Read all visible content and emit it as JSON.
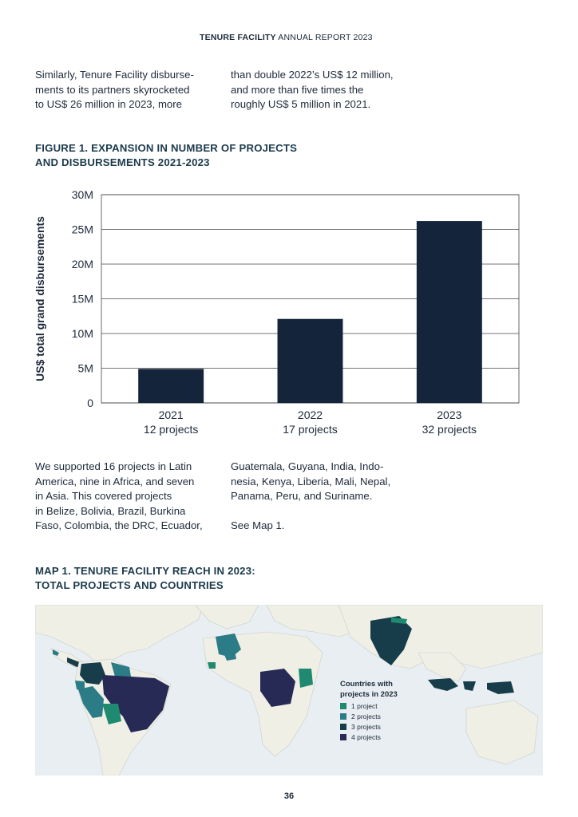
{
  "header": {
    "brand": "TENURE FACILITY",
    "rest": " ANNUAL REPORT 2023"
  },
  "intro": {
    "col1": [
      "Similarly, Tenure Facility disburse-",
      "ments to its partners skyrocketed",
      "to US$ 26 million in 2023, more"
    ],
    "col2": [
      "than double 2022’s US$ 12 million,",
      "and more than five times the",
      "roughly US$ 5 million in 2021."
    ]
  },
  "figure1": {
    "title_line1": "FIGURE 1. EXPANSION IN NUMBER OF PROJECTS",
    "title_line2": "AND DISBURSEMENTS 2021-2023"
  },
  "chart_data": {
    "type": "bar",
    "categories": [
      "2021",
      "2022",
      "2023"
    ],
    "category_sublabels": [
      "12 projects",
      "17 projects",
      "32 projects"
    ],
    "values": [
      4900000,
      12100000,
      26200000
    ],
    "ylabel": "US$ total grand disbursements",
    "xlabel": "",
    "ylim": [
      0,
      30000000
    ],
    "yticks": [
      0,
      5000000,
      10000000,
      15000000,
      20000000,
      25000000,
      30000000
    ],
    "ytick_labels": [
      "0",
      "5M",
      "10M",
      "15M",
      "20M",
      "25M",
      "30M"
    ],
    "grid": true,
    "bar_color": "#14243a"
  },
  "body2": {
    "col1": [
      "We supported 16 projects in Latin",
      "America, nine in Africa, and seven",
      "in Asia. This covered projects",
      "in Belize, Bolivia, Brazil, Burkina",
      "Faso, Colombia, the DRC, Ecuador,"
    ],
    "col2": [
      "Guatemala, Guyana, India, Indo-",
      "nesia, Kenya, Liberia, Mali, Nepal,",
      "Panama, Peru, and Suriname."
    ],
    "see_map": "See Map 1."
  },
  "map1": {
    "title_line1": "MAP 1. TENURE FACILITY REACH IN 2023:",
    "title_line2": "TOTAL PROJECTS AND COUNTRIES",
    "legend_title_1": "Countries with",
    "legend_title_2": "projects in 2023",
    "legend": [
      {
        "label": "1 project",
        "color": "#1f8a70"
      },
      {
        "label": "2 projects",
        "color": "#2b7c86"
      },
      {
        "label": "3 projects",
        "color": "#173c4a"
      },
      {
        "label": "4 projects",
        "color": "#262a55"
      }
    ]
  },
  "page_number": "36"
}
